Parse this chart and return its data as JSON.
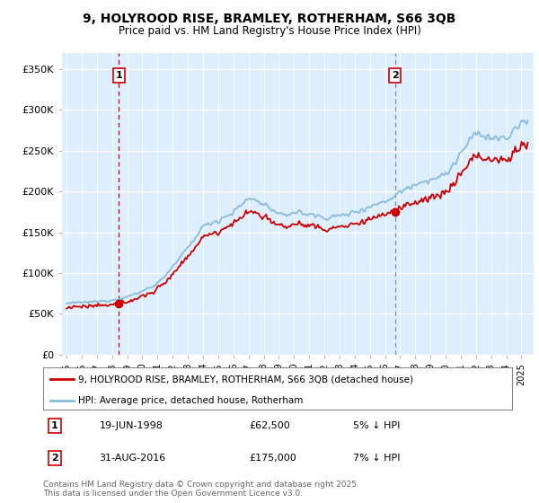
{
  "title_line1": "9, HOLYROOD RISE, BRAMLEY, ROTHERHAM, S66 3QB",
  "title_line2": "Price paid vs. HM Land Registry's House Price Index (HPI)",
  "yticks": [
    0,
    50000,
    100000,
    150000,
    200000,
    250000,
    300000,
    350000
  ],
  "ytick_labels": [
    "£0",
    "£50K",
    "£100K",
    "£150K",
    "£200K",
    "£250K",
    "£300K",
    "£350K"
  ],
  "xlim_start": 1994.7,
  "xlim_end": 2025.8,
  "ylim": [
    0,
    370000
  ],
  "sale1_date": 1998.46,
  "sale1_price": 62500,
  "sale1_label": "1",
  "sale2_date": 2016.66,
  "sale2_price": 175000,
  "sale2_label": "2",
  "line_color_property": "#cc0000",
  "line_color_hpi": "#88bbdd",
  "grid_color": "#ccddee",
  "chart_bg": "#ddeeff",
  "background_color": "#ffffff",
  "legend_label_property": "9, HOLYROOD RISE, BRAMLEY, ROTHERHAM, S66 3QB (detached house)",
  "legend_label_hpi": "HPI: Average price, detached house, Rotherham",
  "footnote": "Contains HM Land Registry data © Crown copyright and database right 2025.\nThis data is licensed under the Open Government Licence v3.0.",
  "xtick_years": [
    1995,
    1996,
    1997,
    1998,
    1999,
    2000,
    2001,
    2002,
    2003,
    2004,
    2005,
    2006,
    2007,
    2008,
    2009,
    2010,
    2011,
    2012,
    2013,
    2014,
    2015,
    2016,
    2017,
    2018,
    2019,
    2020,
    2021,
    2022,
    2023,
    2024,
    2025
  ],
  "hpi_anchors_years": [
    1995,
    1996,
    1997,
    1998,
    1999,
    2000,
    2001,
    2002,
    2003,
    2004,
    2005,
    2006,
    2007,
    2008,
    2009,
    2010,
    2011,
    2012,
    2013,
    2014,
    2015,
    2016,
    2017,
    2018,
    2019,
    2020,
    2021,
    2022,
    2023,
    2024,
    2025
  ],
  "hpi_anchors_vals": [
    63000,
    64000,
    65000,
    67000,
    71000,
    78000,
    88000,
    108000,
    132000,
    158000,
    165000,
    175000,
    192000,
    185000,
    170000,
    175000,
    172000,
    168000,
    170000,
    175000,
    182000,
    188000,
    200000,
    210000,
    215000,
    220000,
    248000,
    272000,
    265000,
    265000,
    285000
  ]
}
